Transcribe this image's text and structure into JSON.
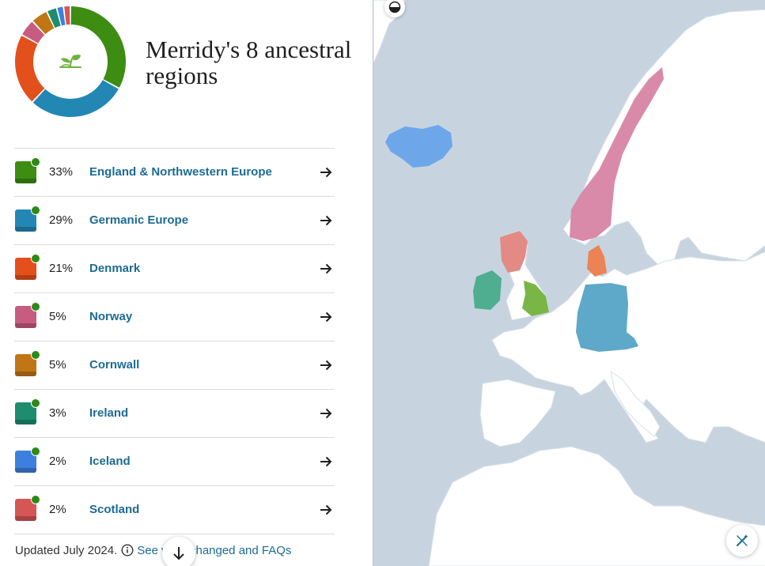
{
  "header": {
    "title": "Merridy's 8 ancestral regions"
  },
  "ancestry_chart": {
    "center_icon": "leaf-sprout-icon",
    "segments": [
      {
        "region": "England & Northwestern Europe",
        "percent": 33,
        "color": "#3c8d12"
      },
      {
        "region": "Germanic Europe",
        "percent": 29,
        "color": "#2387b4"
      },
      {
        "region": "Denmark",
        "percent": 21,
        "color": "#e3501c"
      },
      {
        "region": "Norway",
        "percent": 5,
        "color": "#c85c80"
      },
      {
        "region": "Cornwall",
        "percent": 5,
        "color": "#c07614"
      },
      {
        "region": "Ireland",
        "percent": 3,
        "color": "#1e8c6e"
      },
      {
        "region": "Iceland",
        "percent": 2,
        "color": "#3d7fde"
      },
      {
        "region": "Scotland",
        "percent": 2,
        "color": "#d65555"
      }
    ]
  },
  "regions": [
    {
      "percent_label": "33%",
      "name": "England & Northwestern Europe",
      "color": "#3c8d12"
    },
    {
      "percent_label": "29%",
      "name": "Germanic Europe",
      "color": "#2387b4"
    },
    {
      "percent_label": "21%",
      "name": "Denmark",
      "color": "#e3501c"
    },
    {
      "percent_label": "5%",
      "name": "Norway",
      "color": "#c85c80"
    },
    {
      "percent_label": "5%",
      "name": "Cornwall",
      "color": "#c07614"
    },
    {
      "percent_label": "3%",
      "name": "Ireland",
      "color": "#1e8c6e"
    },
    {
      "percent_label": "2%",
      "name": "Iceland",
      "color": "#3d7fde"
    },
    {
      "percent_label": "2%",
      "name": "Scotland",
      "color": "#d65555"
    }
  ],
  "footer": {
    "updated_text": "Updated July 2024.",
    "link_text": "See what changed and FAQs"
  },
  "map": {
    "sea_color": "#c7d4df",
    "land_color": "#ffffff",
    "highlight_colors": {
      "Iceland": "#6ea6ea",
      "Norway": "#d98aa8",
      "Scotland": "#e48a84",
      "Ireland": "#4fae90",
      "England & Northwestern Europe": "#79b646",
      "Denmark": "#ec8354",
      "Germanic Europe": "#5ea8c9"
    },
    "controls": [
      "contrast-icon",
      "magic-wand-icon"
    ]
  },
  "scroll_button": {
    "icon": "arrow-down-icon"
  }
}
